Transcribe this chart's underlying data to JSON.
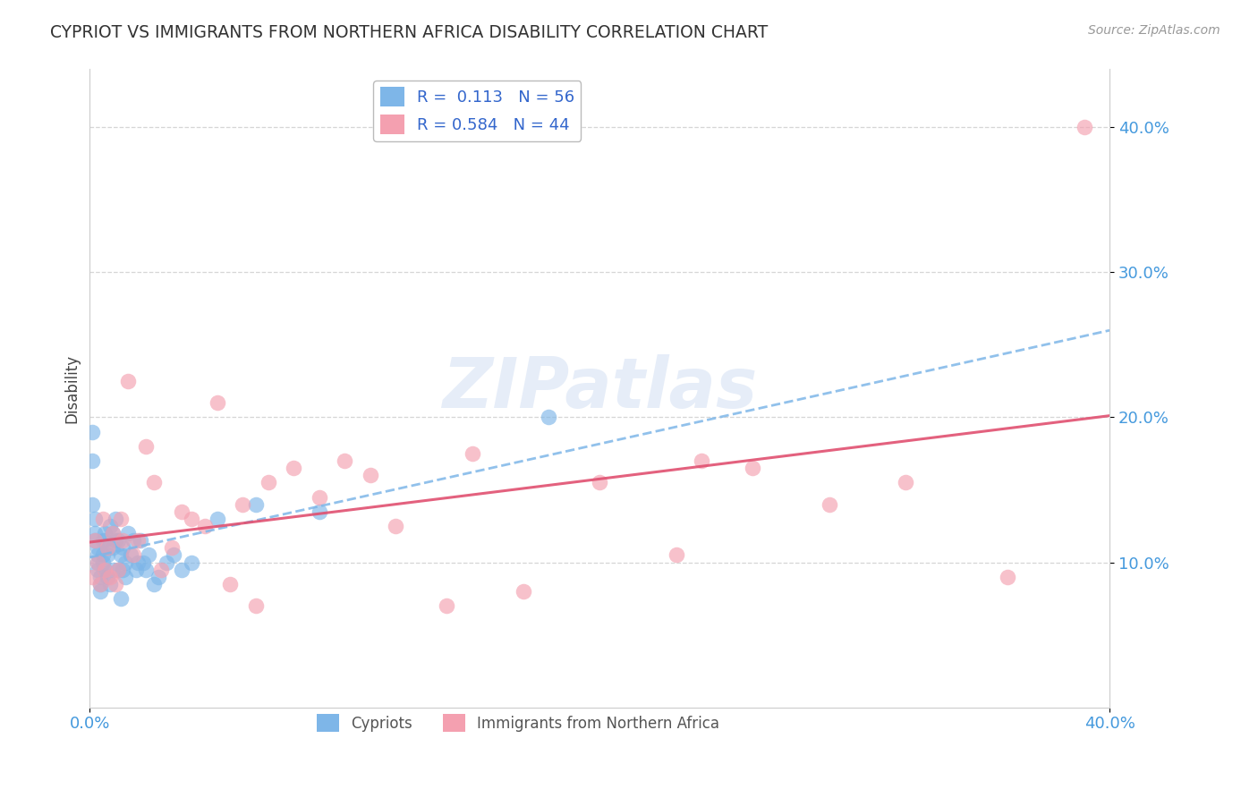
{
  "title": "CYPRIOT VS IMMIGRANTS FROM NORTHERN AFRICA DISABILITY CORRELATION CHART",
  "source_text": "Source: ZipAtlas.com",
  "ylabel": "Disability",
  "xlim": [
    0.0,
    0.4
  ],
  "ylim": [
    0.0,
    0.44
  ],
  "xtick_vals": [
    0.0,
    0.4
  ],
  "xtick_labels": [
    "0.0%",
    "40.0%"
  ],
  "ytick_vals": [
    0.1,
    0.2,
    0.3,
    0.4
  ],
  "ytick_labels": [
    "10.0%",
    "20.0%",
    "30.0%",
    "40.0%"
  ],
  "cypriot_color": "#7EB6E8",
  "immigrant_color": "#F4A0B0",
  "trendline_cypriot_color": "#7EB6E8",
  "trendline_immigrant_color": "#E05070",
  "cypriot_R": 0.113,
  "cypriot_N": 56,
  "immigrant_R": 0.584,
  "immigrant_N": 44,
  "watermark": "ZIPatlas",
  "background_color": "#ffffff",
  "grid_color": "#cccccc",
  "title_color": "#333333",
  "axis_label_color": "#444444",
  "tick_color": "#4499dd",
  "legend_text_color": "#3366cc",
  "cypriot_x": [
    0.001,
    0.001,
    0.001,
    0.002,
    0.002,
    0.002,
    0.003,
    0.003,
    0.003,
    0.003,
    0.004,
    0.004,
    0.004,
    0.005,
    0.005,
    0.005,
    0.006,
    0.006,
    0.006,
    0.007,
    0.007,
    0.007,
    0.008,
    0.008,
    0.009,
    0.009,
    0.009,
    0.01,
    0.01,
    0.011,
    0.011,
    0.012,
    0.012,
    0.013,
    0.013,
    0.014,
    0.014,
    0.015,
    0.016,
    0.017,
    0.018,
    0.019,
    0.02,
    0.021,
    0.022,
    0.023,
    0.025,
    0.027,
    0.03,
    0.033,
    0.036,
    0.04,
    0.05,
    0.065,
    0.09,
    0.18
  ],
  "cypriot_y": [
    0.19,
    0.17,
    0.14,
    0.13,
    0.12,
    0.115,
    0.11,
    0.105,
    0.1,
    0.095,
    0.09,
    0.085,
    0.08,
    0.115,
    0.105,
    0.1,
    0.12,
    0.115,
    0.095,
    0.11,
    0.105,
    0.09,
    0.125,
    0.085,
    0.12,
    0.11,
    0.095,
    0.13,
    0.115,
    0.115,
    0.095,
    0.105,
    0.075,
    0.11,
    0.095,
    0.1,
    0.09,
    0.12,
    0.105,
    0.115,
    0.095,
    0.1,
    0.115,
    0.1,
    0.095,
    0.105,
    0.085,
    0.09,
    0.1,
    0.105,
    0.095,
    0.1,
    0.13,
    0.14,
    0.135,
    0.2
  ],
  "immigrant_x": [
    0.001,
    0.002,
    0.003,
    0.004,
    0.005,
    0.006,
    0.007,
    0.008,
    0.009,
    0.01,
    0.011,
    0.012,
    0.013,
    0.015,
    0.017,
    0.019,
    0.022,
    0.025,
    0.028,
    0.032,
    0.036,
    0.04,
    0.045,
    0.05,
    0.055,
    0.06,
    0.065,
    0.07,
    0.08,
    0.09,
    0.1,
    0.11,
    0.12,
    0.14,
    0.15,
    0.17,
    0.2,
    0.23,
    0.24,
    0.26,
    0.29,
    0.32,
    0.36,
    0.39
  ],
  "immigrant_y": [
    0.09,
    0.115,
    0.1,
    0.085,
    0.13,
    0.095,
    0.11,
    0.09,
    0.12,
    0.085,
    0.095,
    0.13,
    0.115,
    0.225,
    0.105,
    0.115,
    0.18,
    0.155,
    0.095,
    0.11,
    0.135,
    0.13,
    0.125,
    0.21,
    0.085,
    0.14,
    0.07,
    0.155,
    0.165,
    0.145,
    0.17,
    0.16,
    0.125,
    0.07,
    0.175,
    0.08,
    0.155,
    0.105,
    0.17,
    0.165,
    0.14,
    0.155,
    0.09,
    0.4
  ]
}
